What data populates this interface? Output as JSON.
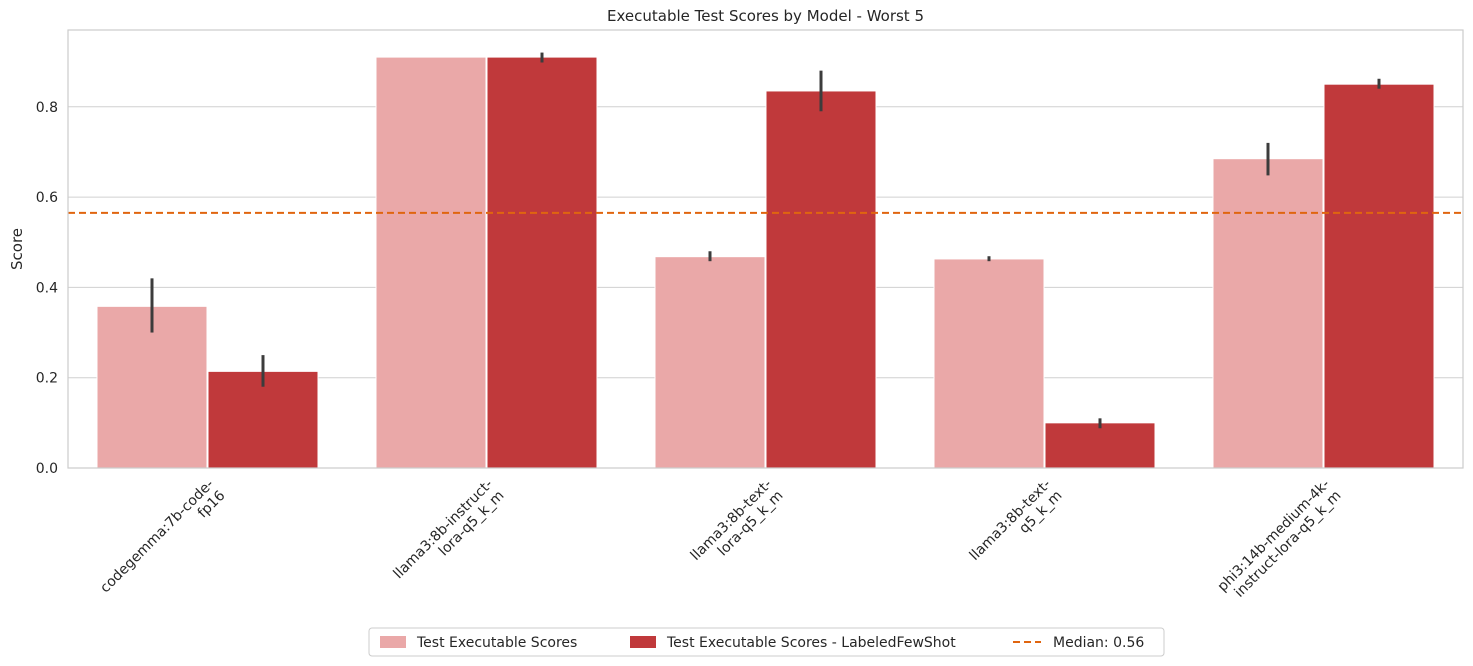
{
  "chart_data": {
    "type": "bar",
    "title": "Executable Test Scores by Model - Worst 5",
    "xlabel": "",
    "ylabel": "Score",
    "ylim": [
      0,
      0.97
    ],
    "yticks": [
      "0.0",
      "0.2",
      "0.4",
      "0.6",
      "0.8"
    ],
    "ytick_values": [
      0,
      0.2,
      0.4,
      0.6,
      0.8
    ],
    "grid": "horizontal",
    "legend_position": "bottom-center",
    "categories": [
      [
        "codegemma:7b-code-",
        "fp16"
      ],
      [
        "llama3:8b-instruct-",
        "lora-q5_k_m"
      ],
      [
        "llama3:8b-text-",
        "lora-q5_k_m"
      ],
      [
        "llama3:8b-text-",
        "q5_k_m"
      ],
      [
        "phi3:14b-medium-4k-",
        "instruct-lora-q5_k_m"
      ]
    ],
    "series": [
      {
        "name": "Test Executable Scores",
        "color": "#eaa8a8",
        "values": [
          0.358,
          0.91,
          0.468,
          0.463,
          0.685
        ],
        "err_low": [
          0.3,
          0.91,
          0.458,
          0.458,
          0.648
        ],
        "err_high": [
          0.42,
          0.91,
          0.48,
          0.469,
          0.72
        ]
      },
      {
        "name": "Test Executable Scores - LabeledFewShot",
        "color": "#c0393b",
        "values": [
          0.214,
          0.91,
          0.835,
          0.1,
          0.85
        ],
        "err_low": [
          0.18,
          0.898,
          0.79,
          0.088,
          0.84
        ],
        "err_high": [
          0.25,
          0.92,
          0.88,
          0.11,
          0.862
        ]
      }
    ],
    "reference_line": {
      "label": "Median: 0.56",
      "value": 0.565,
      "color": "#e0650f"
    }
  }
}
